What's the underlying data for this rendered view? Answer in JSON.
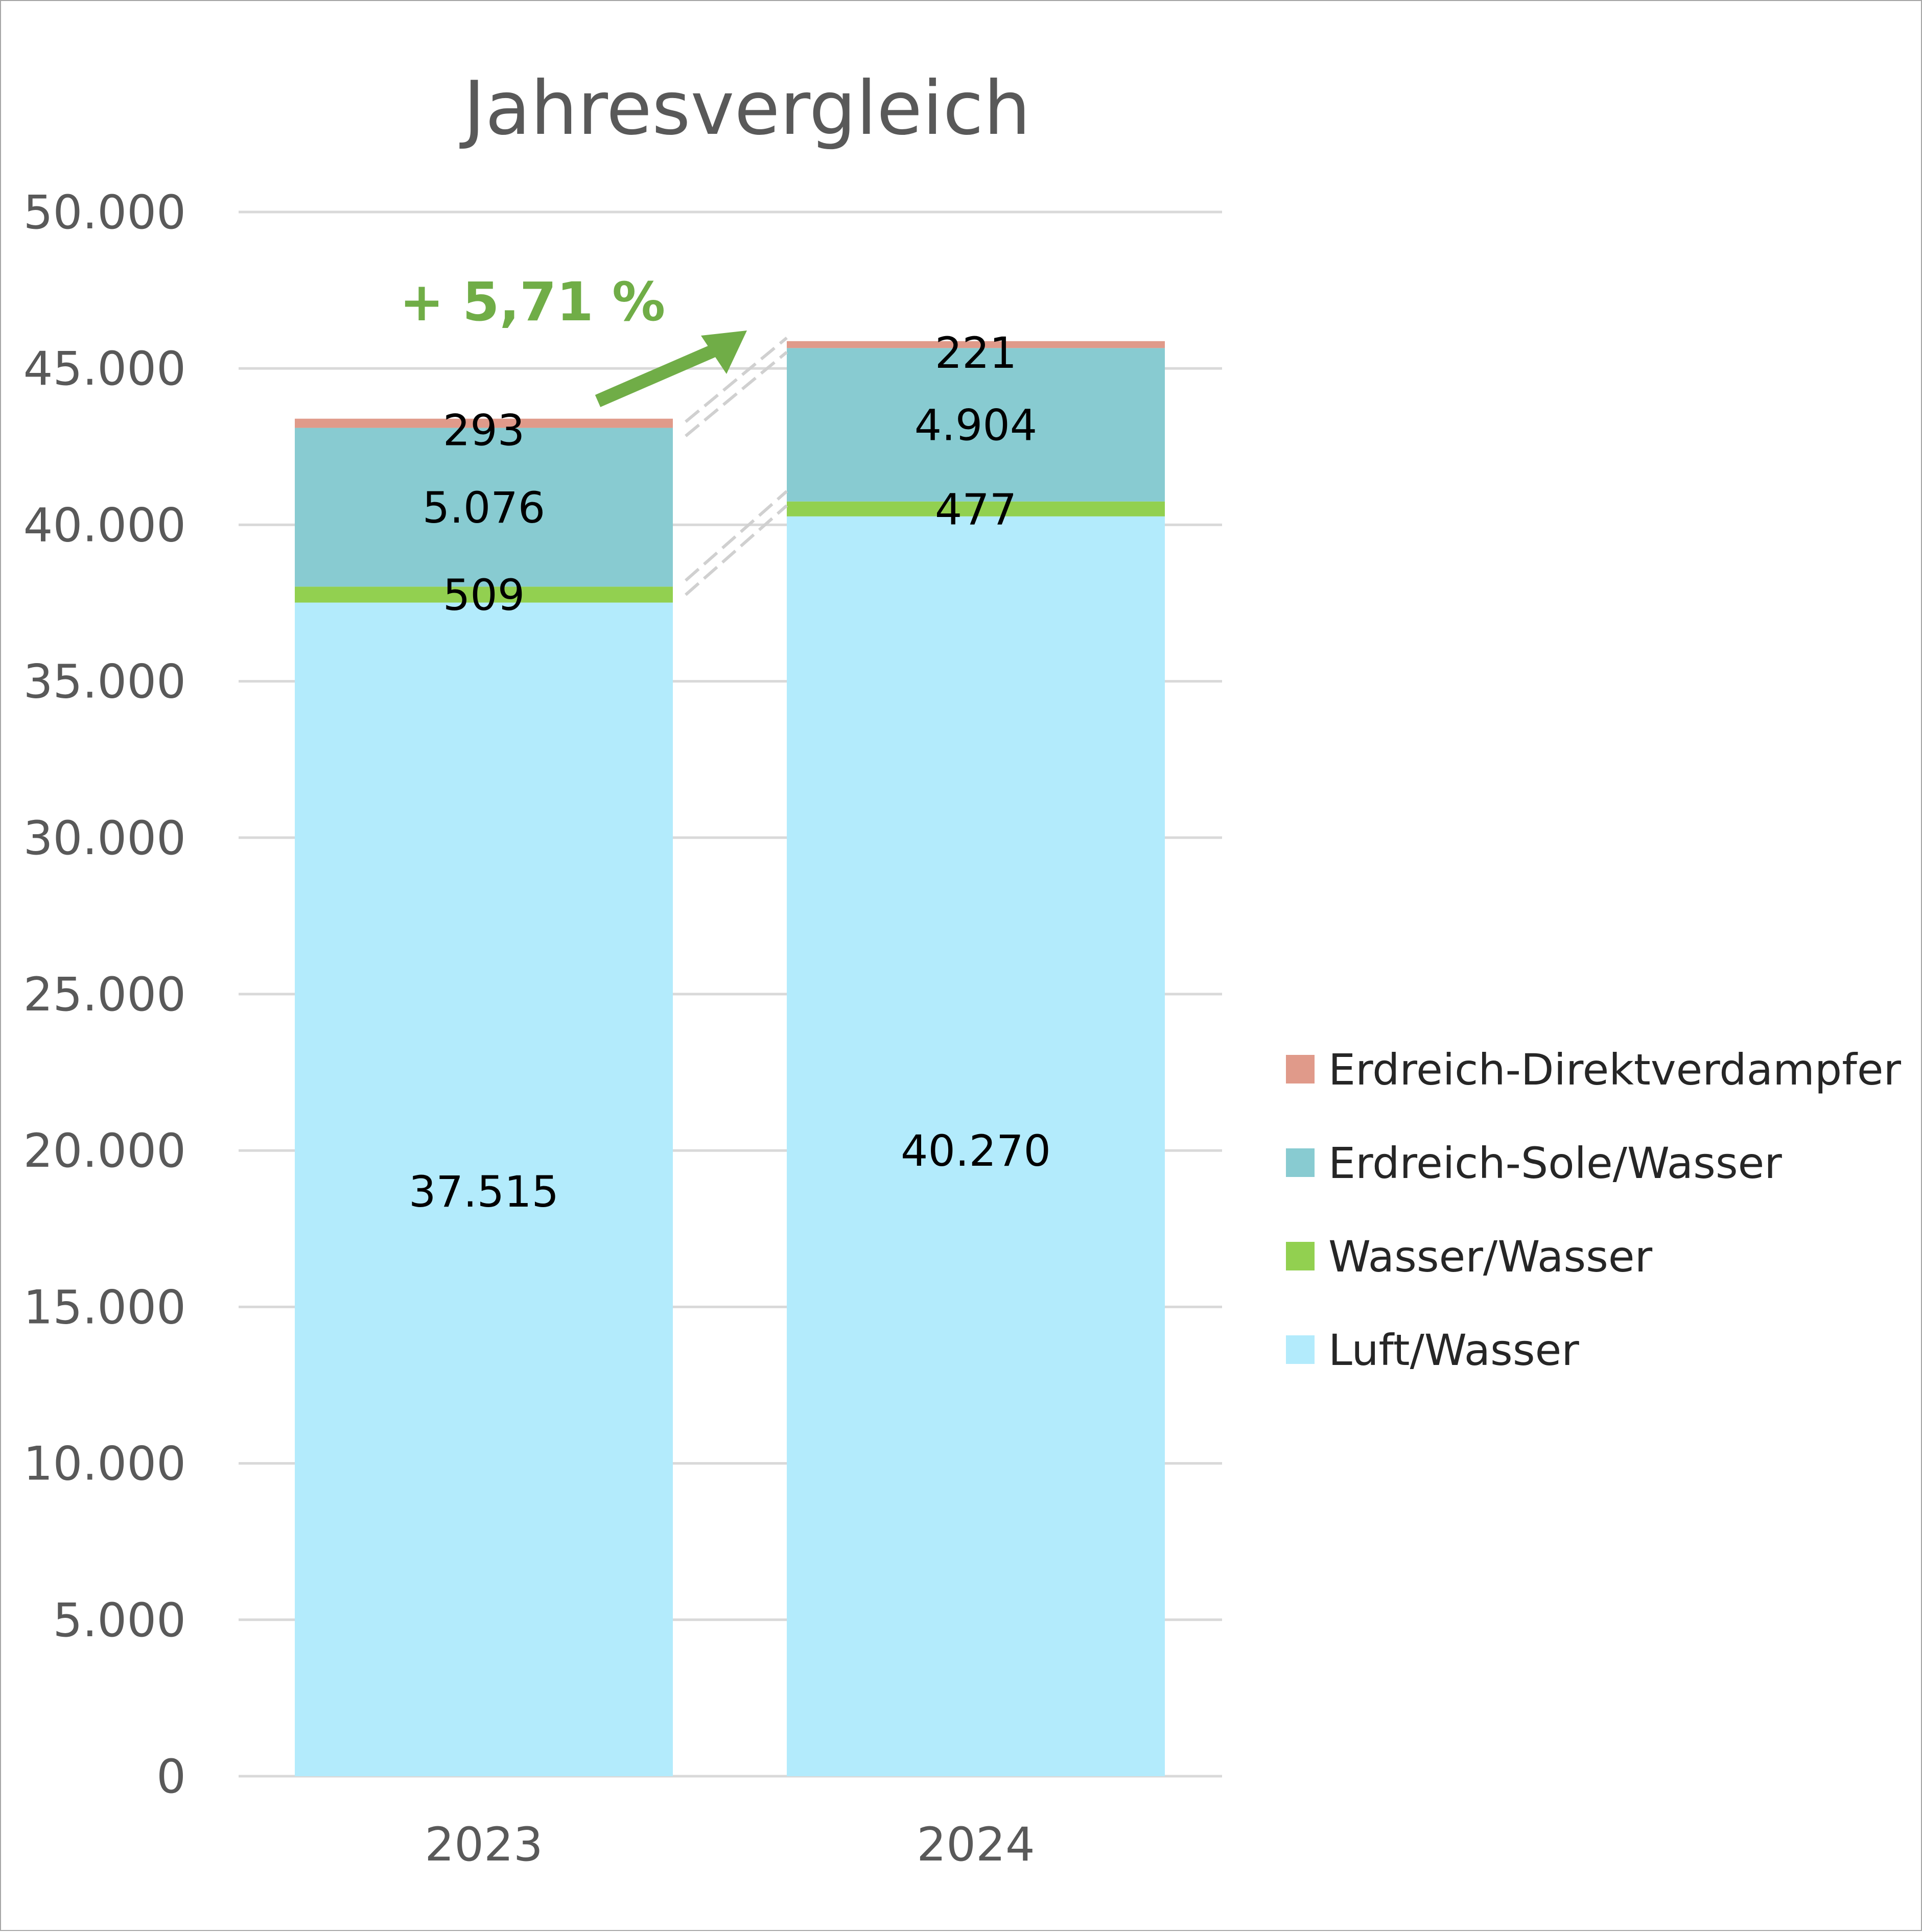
{
  "chart_data": {
    "type": "bar",
    "stacked": true,
    "title": "Jahresvergleich",
    "xlabel": "",
    "ylabel": "",
    "ylim": [
      0,
      50000
    ],
    "y_ticks": [
      0,
      5000,
      10000,
      15000,
      20000,
      25000,
      30000,
      35000,
      40000,
      45000,
      50000
    ],
    "y_tick_labels": [
      "0",
      "5.000",
      "10.000",
      "15.000",
      "20.000",
      "25.000",
      "30.000",
      "35.000",
      "40.000",
      "45.000",
      "50.000"
    ],
    "grid": true,
    "categories": [
      "2023",
      "2024"
    ],
    "series": [
      {
        "name": "Luft/Wasser",
        "color": "#b3ebfc",
        "values": [
          37515,
          40270
        ],
        "labels": [
          "37.515",
          "40.270"
        ]
      },
      {
        "name": "Wasser/Wasser",
        "color": "#92d050",
        "values": [
          509,
          477
        ],
        "labels": [
          "509",
          "477"
        ]
      },
      {
        "name": "Erdreich-Sole/Wasser",
        "color": "#88cbd1",
        "values": [
          5076,
          4904
        ],
        "labels": [
          "5.076",
          "4.904"
        ]
      },
      {
        "name": "Erdreich-Direktverdampfer",
        "color": "#e09a8a",
        "values": [
          293,
          221
        ],
        "labels": [
          "293",
          "221"
        ]
      }
    ],
    "legend": {
      "placement": "right",
      "order": [
        "Erdreich-Direktverdampfer",
        "Erdreich-Sole/Wasser",
        "Wasser/Wasser",
        "Luft/Wasser"
      ]
    },
    "annotation": {
      "text": "+ 5,71 %",
      "color": "#70ad47",
      "icon": "up-right-arrow-icon"
    }
  }
}
